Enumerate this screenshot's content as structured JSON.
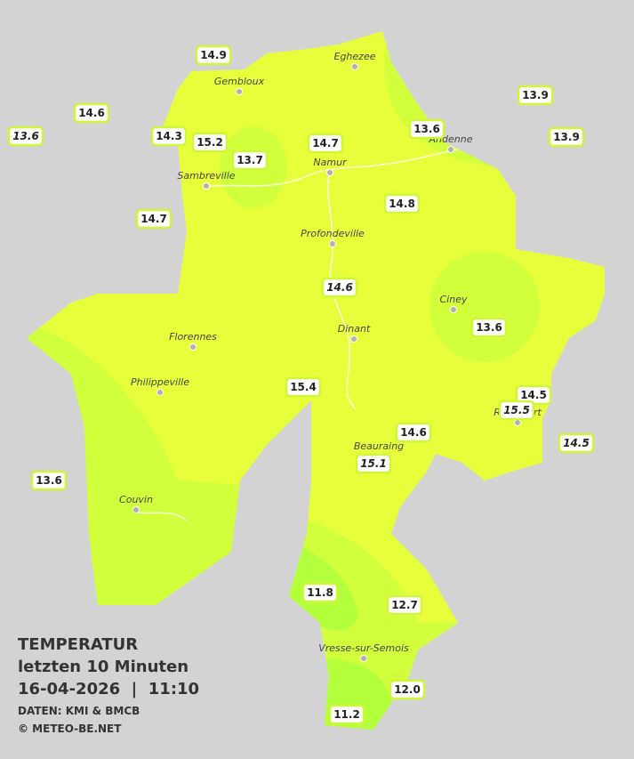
{
  "legend": {
    "title": "TEMPERATUR",
    "period": "letzten 10 Minuten",
    "datetime": "16-04-2026  |  11:10",
    "source": "DATEN: KMI & BMCB",
    "copyright": "© METEO-BE.NET"
  },
  "cities": [
    "Eghezee",
    "Gembloux",
    "Andenne",
    "Namur",
    "Sambreville",
    "Profondeville",
    "Ciney",
    "Dinant",
    "Florennes",
    "Philippeville",
    "Rochefort",
    "Beauraing",
    "Couvin",
    "Vresse-sur-Semois"
  ],
  "stations": [
    {
      "label": "14.9",
      "italic": false
    },
    {
      "label": "14.6",
      "italic": false
    },
    {
      "label": "13.6",
      "italic": true
    },
    {
      "label": "14.3",
      "italic": false
    },
    {
      "label": "15.2",
      "italic": false
    },
    {
      "label": "13.7",
      "italic": false
    },
    {
      "label": "14.7",
      "italic": false
    },
    {
      "label": "13.6",
      "italic": false
    },
    {
      "label": "13.9",
      "italic": false
    },
    {
      "label": "13.9",
      "italic": false
    },
    {
      "label": "14.7",
      "italic": false
    },
    {
      "label": "14.8",
      "italic": false
    },
    {
      "label": "14.6",
      "italic": true
    },
    {
      "label": "13.6",
      "italic": false
    },
    {
      "label": "15.4",
      "italic": false
    },
    {
      "label": "14.5",
      "italic": false
    },
    {
      "label": "15.5",
      "italic": true
    },
    {
      "label": "14.6",
      "italic": false
    },
    {
      "label": "14.5",
      "italic": true
    },
    {
      "label": "15.1",
      "italic": true
    },
    {
      "label": "13.6",
      "italic": false
    },
    {
      "label": "11.8",
      "italic": false
    },
    {
      "label": "12.7",
      "italic": false
    },
    {
      "label": "12.0",
      "italic": false
    },
    {
      "label": "11.2",
      "italic": false
    }
  ]
}
